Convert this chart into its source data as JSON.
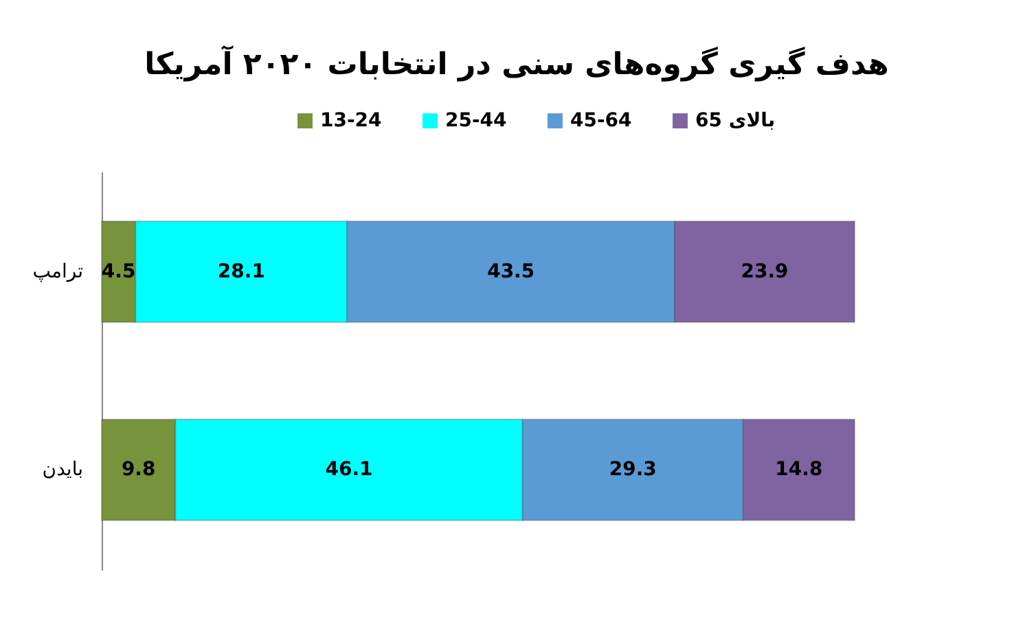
{
  "chart_data": {
    "type": "bar",
    "orientation": "horizontal",
    "stacked": true,
    "title": "هدف گیری گروه‌های سنی در انتخابات ۲۰۲۰ آمریکا",
    "categories": [
      "ترامپ",
      "بایدن"
    ],
    "series": [
      {
        "name": "13-24",
        "color": "#77933c",
        "values": [
          4.5,
          9.8
        ]
      },
      {
        "name": "25-44",
        "color": "#00ffff",
        "values": [
          28.1,
          46.1
        ]
      },
      {
        "name": "45-64",
        "color": "#5b9bd5",
        "values": [
          43.5,
          29.3
        ]
      },
      {
        "name": "بالای 65",
        "color": "#8064a2",
        "values": [
          23.9,
          14.8
        ]
      }
    ],
    "data_labels": true,
    "legend": "top"
  }
}
